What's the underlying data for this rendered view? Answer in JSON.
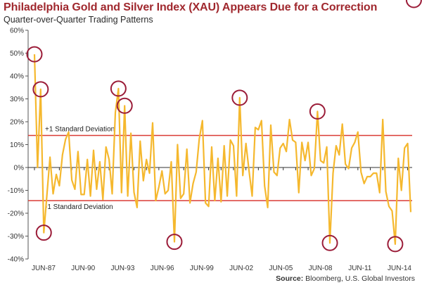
{
  "chart_data": {
    "type": "line",
    "title": "Philadelphia Gold and Silver Index (XAU) Appears Due for a Correction",
    "subtitle": "Quarter-over-Quarter Trading Patterns",
    "xlabel": "",
    "ylabel": "",
    "ylim": [
      -40,
      60
    ],
    "yticks": [
      "60%",
      "50%",
      "40%",
      "30%",
      "20%",
      "10%",
      "0%",
      "-10%",
      "-20%",
      "-30%",
      "-40%"
    ],
    "xticks": [
      "JUN-87",
      "JUN-90",
      "JUN-93",
      "JUN-96",
      "JUN-99",
      "JUN-02",
      "JUN-05",
      "JUN-08",
      "JUN-11",
      "JUN-14"
    ],
    "grid": false,
    "series": [
      {
        "color": "#f5b82e",
        "values": [
          49.5,
          0,
          34.2,
          -28.5,
          -12,
          4.5,
          -11.5,
          -3,
          -8,
          5.5,
          12.3,
          15.5,
          -5.5,
          -9.5,
          7,
          -11.8,
          -11.8,
          3.5,
          -12.5,
          7.5,
          -9.5,
          2.5,
          -14,
          9,
          3.5,
          -11.5,
          24,
          34.5,
          -11,
          27,
          -12.5,
          15,
          -10.8,
          -17.5,
          11.5,
          -5.8,
          3.5,
          -2.5,
          19.5,
          -14.5,
          -8.5,
          -1.5,
          -11.5,
          -10,
          2.5,
          -32.5,
          10,
          -13.5,
          -11.5,
          8,
          -15.5,
          -7,
          -2,
          12.5,
          20.5,
          -15.5,
          -17,
          9,
          -14.5,
          4,
          -15,
          9.5,
          -12.5,
          12,
          9.5,
          -12.5,
          30.5,
          -3.5,
          10.5,
          -1.5,
          -12.5,
          17.5,
          16.5,
          20.5,
          -8,
          -17.5,
          18.5,
          -2,
          -3.5,
          8.5,
          10.5,
          7,
          21,
          12,
          11,
          -11,
          11,
          3,
          11,
          -3.5,
          -0.5,
          24.5,
          3,
          2,
          9,
          -33,
          -2.5,
          9.5,
          5.5,
          19,
          1.5,
          -0.5,
          8.5,
          11,
          15.5,
          -2,
          -7,
          -4,
          -4,
          -2.5,
          -2.5,
          -11,
          21,
          -10.5,
          -17,
          -19,
          -33.5,
          4,
          -10,
          8.5,
          10.5,
          -19.5
        ]
      }
    ],
    "reference_lines": [
      {
        "label": "+1 Standard Deviation",
        "value": 14,
        "color": "#d93b34"
      },
      {
        "label": "-1 Standard Deviation",
        "value": -14.5,
        "color": "#d93b34"
      }
    ],
    "highlighted_points": [
      0,
      2,
      3,
      27,
      29,
      45,
      66,
      91,
      95,
      116,
      122
    ],
    "highlight_color": "#9b1c38",
    "source_label": "Source:",
    "source_text": "Bloomberg, U.S. Global Investors"
  }
}
